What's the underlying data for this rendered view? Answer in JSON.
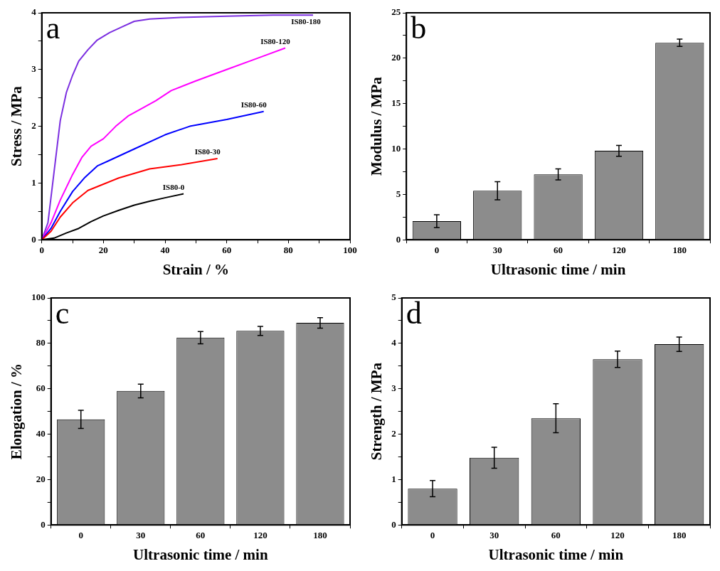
{
  "chart_data": [
    {
      "type": "line",
      "xlabel": "Strain / %",
      "ylabel": "Stress / MPa",
      "annotations": [
        "a"
      ],
      "xlim": [
        0,
        100
      ],
      "xticks": [
        0,
        {
          "value": 10,
          "label": null
        },
        20,
        {
          "value": 30,
          "label": null
        },
        40,
        {
          "value": 50,
          "label": null
        },
        60,
        {
          "value": 70,
          "label": null
        },
        80,
        {
          "value": 90,
          "label": null
        },
        100
      ],
      "ylim": [
        0,
        4
      ],
      "yticks": [
        0,
        {
          "value": 0.5,
          "label": null
        },
        1,
        {
          "value": 1.5,
          "label": null
        },
        2,
        {
          "value": 2.5,
          "label": null
        },
        3,
        {
          "value": 3.5,
          "label": null
        },
        4
      ],
      "grid": false,
      "legend": false,
      "marker": "none",
      "line_style": "solid",
      "series": [
        {
          "name": "IS80-0",
          "color": "#000000",
          "x": [
            0,
            4,
            8,
            12,
            16,
            20,
            25,
            30,
            35,
            40,
            46
          ],
          "values": [
            0,
            0.03,
            0.12,
            0.2,
            0.32,
            0.42,
            0.52,
            0.61,
            0.68,
            0.74,
            0.81
          ]
        },
        {
          "name": "IS80-30",
          "color": "#ff0000",
          "x": [
            0,
            3,
            6,
            10,
            15,
            20,
            25,
            35,
            45,
            57
          ],
          "values": [
            0,
            0.15,
            0.4,
            0.65,
            0.87,
            0.98,
            1.09,
            1.25,
            1.32,
            1.43
          ]
        },
        {
          "name": "IS80-60",
          "color": "#0000ff",
          "x": [
            0,
            3,
            6,
            10,
            14,
            18,
            22,
            30,
            40,
            48,
            60,
            72
          ],
          "values": [
            0,
            0.2,
            0.5,
            0.85,
            1.1,
            1.3,
            1.4,
            1.6,
            1.85,
            2.0,
            2.12,
            2.26
          ]
        },
        {
          "name": "IS80-120",
          "color": "#ff00ff",
          "x": [
            0,
            3,
            6,
            10,
            13,
            16,
            20,
            24,
            28,
            32,
            37,
            42,
            50,
            60,
            70,
            79
          ],
          "values": [
            0,
            0.3,
            0.7,
            1.15,
            1.45,
            1.65,
            1.78,
            2.0,
            2.18,
            2.3,
            2.45,
            2.63,
            2.8,
            3.0,
            3.2,
            3.38
          ]
        },
        {
          "name": "IS80-180",
          "color": "#7b2ee0",
          "x": [
            0,
            2,
            4,
            6,
            8,
            10,
            12,
            15,
            18,
            22,
            26,
            30,
            35,
            45,
            60,
            75,
            88
          ],
          "values": [
            0,
            0.3,
            1.2,
            2.1,
            2.6,
            2.9,
            3.15,
            3.35,
            3.52,
            3.65,
            3.75,
            3.85,
            3.89,
            3.92,
            3.94,
            3.96,
            3.96
          ]
        }
      ]
    },
    {
      "type": "bar",
      "xlabel": "Ultrasonic time / min",
      "ylabel": "Modulus / MPa",
      "annotations": [
        "b"
      ],
      "categories": [
        "0",
        "30",
        "60",
        "120",
        "180"
      ],
      "values": [
        2.05,
        5.4,
        7.2,
        9.8,
        21.7
      ],
      "errors": [
        0.7,
        1.0,
        0.6,
        0.6,
        0.4
      ],
      "color": "#8c8c8c",
      "ylim": [
        0,
        25
      ],
      "yticks": [
        0,
        {
          "value": 2.5,
          "label": null
        },
        5,
        {
          "value": 7.5,
          "label": null
        },
        10,
        {
          "value": 12.5,
          "label": null
        },
        15,
        {
          "value": 17.5,
          "label": null
        },
        20,
        {
          "value": 22.5,
          "label": null
        },
        25
      ],
      "grid": false,
      "legend": false
    },
    {
      "type": "bar",
      "xlabel": "Ultrasonic time / min",
      "ylabel": "Elongation / %",
      "annotations": [
        "c"
      ],
      "categories": [
        "0",
        "30",
        "60",
        "120",
        "180"
      ],
      "values": [
        46.5,
        59,
        82.5,
        85.5,
        89
      ],
      "errors": [
        4,
        3,
        2.7,
        2,
        2.3
      ],
      "color": "#8c8c8c",
      "ylim": [
        0,
        100
      ],
      "yticks": [
        0,
        {
          "value": 10,
          "label": null
        },
        20,
        {
          "value": 30,
          "label": null
        },
        40,
        {
          "value": 50,
          "label": null
        },
        60,
        {
          "value": 70,
          "label": null
        },
        80,
        {
          "value": 90,
          "label": null
        },
        100
      ],
      "grid": false,
      "legend": false
    },
    {
      "type": "bar",
      "xlabel": "Ultrasonic time / min",
      "ylabel": "Strength / MPa",
      "annotations": [
        "d"
      ],
      "categories": [
        "0",
        "30",
        "60",
        "120",
        "180"
      ],
      "values": [
        0.8,
        1.48,
        2.35,
        3.65,
        3.98
      ],
      "errors": [
        0.18,
        0.23,
        0.32,
        0.18,
        0.16
      ],
      "color": "#8c8c8c",
      "ylim": [
        0,
        5
      ],
      "yticks": [
        0,
        {
          "value": 0.5,
          "label": null
        },
        1,
        {
          "value": 1.5,
          "label": null
        },
        2,
        {
          "value": 2.5,
          "label": null
        },
        3,
        {
          "value": 3.5,
          "label": null
        },
        4,
        {
          "value": 4.5,
          "label": null
        },
        5
      ],
      "grid": false,
      "legend": false
    }
  ]
}
